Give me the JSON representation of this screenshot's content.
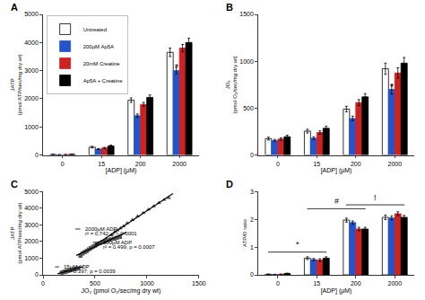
{
  "chart_data": [
    {
      "type": "bar",
      "title": "A",
      "xlabel": "[ADP] (μM)",
      "ylabel": "JATP\n(pmol ATP/sec/mg dry wt)",
      "categories": [
        "0",
        "15",
        "200",
        "2000"
      ],
      "ylim": [
        0,
        5000
      ],
      "yticks": [
        0,
        1000,
        2000,
        3000,
        4000,
        5000
      ],
      "grid": false,
      "legend": "upper left",
      "series": [
        {
          "name": "Untreated",
          "color": "white",
          "values": [
            20,
            280,
            1950,
            3650
          ],
          "errors": [
            10,
            30,
            80,
            150
          ]
        },
        {
          "name": "200μM Ap5A",
          "color": "#2255cc",
          "values": [
            10,
            210,
            1400,
            3000
          ],
          "errors": [
            5,
            20,
            60,
            120
          ]
        },
        {
          "name": "20mM Creatine",
          "color": "#cc2222",
          "values": [
            15,
            250,
            1800,
            3800
          ],
          "errors": [
            8,
            25,
            70,
            130
          ]
        },
        {
          "name": "Ap5A + Creatine",
          "color": "black",
          "values": [
            25,
            320,
            2050,
            4000
          ],
          "errors": [
            12,
            35,
            85,
            150
          ]
        }
      ],
      "annotations": [
        {
          "text": "*",
          "category": "2000",
          "series": "200μM Ap5A",
          "y": 2850
        }
      ]
    },
    {
      "type": "bar",
      "title": "B",
      "xlabel": "[ADP] (μM)",
      "ylabel": "JO₂\n(pmol O₂/sec/mg dry wt)",
      "categories": [
        "0",
        "15",
        "200",
        "2000"
      ],
      "ylim": [
        0,
        1500
      ],
      "yticks": [
        0,
        500,
        1000,
        1500
      ],
      "grid": false,
      "series": [
        {
          "name": "Untreated",
          "color": "white",
          "values": [
            175,
            255,
            490,
            920
          ],
          "errors": [
            15,
            20,
            30,
            60
          ]
        },
        {
          "name": "200μM Ap5A",
          "color": "#2255cc",
          "values": [
            155,
            180,
            390,
            700
          ],
          "errors": [
            12,
            15,
            25,
            50
          ]
        },
        {
          "name": "20mM Creatine",
          "color": "#cc2222",
          "values": [
            170,
            240,
            560,
            875
          ],
          "errors": [
            14,
            18,
            32,
            55
          ]
        },
        {
          "name": "Ap5A + Creatine",
          "color": "black",
          "values": [
            195,
            285,
            620,
            980
          ],
          "errors": [
            16,
            22,
            35,
            60
          ]
        }
      ],
      "annotations": [
        {
          "text": "*",
          "category": "2000",
          "series": "200μM Ap5A",
          "y": 650
        }
      ]
    },
    {
      "type": "scatter",
      "title": "C",
      "xlabel": "JO₂ (pmol O₂/sec/mg dry wt)",
      "ylabel": "JATP\n(pmol ATP/sec/mg dry wt)",
      "xlim": [
        0,
        1500
      ],
      "ylim": [
        0,
        5000
      ],
      "xticks": [
        0,
        500,
        1000,
        1500
      ],
      "yticks": [
        0,
        1000,
        2000,
        3000,
        4000,
        5000
      ],
      "grid": false,
      "series": [
        {
          "type": "scatter",
          "marker": "square",
          "color": "#555555",
          "x": [
            180,
            195,
            205,
            215,
            225,
            235,
            250,
            265,
            280,
            300,
            320,
            340
          ],
          "values": [
            130,
            155,
            175,
            195,
            210,
            235,
            260,
            280,
            310,
            340,
            370,
            410
          ]
        },
        {
          "type": "line",
          "color": "black",
          "x": [
            140,
            390
          ],
          "values": [
            63.74,
            497.04
          ]
        },
        {
          "type": "scatter",
          "marker": "square",
          "color": "#555555",
          "x": [
            360,
            380,
            400,
            420,
            440,
            460,
            480,
            500,
            520,
            545,
            570,
            595,
            620,
            650,
            685,
            710,
            740
          ],
          "values": [
            1150,
            1280,
            1360,
            1430,
            1520,
            1600,
            1680,
            1750,
            1830,
            1900,
            1960,
            2010,
            2060,
            2130,
            2170,
            2220,
            2280
          ]
        },
        {
          "type": "line",
          "color": "black",
          "x": [
            320,
            800
          ],
          "values": [
            1166.37,
            2553.11
          ]
        },
        {
          "type": "scatter",
          "marker": "triangle",
          "color": "#555555",
          "x": [
            560,
            610,
            655,
            690,
            715,
            745,
            775,
            810,
            860,
            910,
            965,
            1015,
            1065,
            1115,
            1165,
            1210
          ],
          "values": [
            1980,
            2180,
            2380,
            2580,
            2680,
            2800,
            2920,
            3100,
            3300,
            3520,
            3720,
            3920,
            4120,
            4320,
            4500,
            4620
          ]
        },
        {
          "type": "line",
          "color": "black",
          "x": [
            500,
            1250
          ],
          "values": [
            1778.25,
            4871.34
          ]
        }
      ],
      "annotations": [
        {
          "text": "2000μM ADP",
          "x": 390,
          "y": 2750
        },
        {
          "text": "r² = 0.742; p < 0.0001",
          "x": 390,
          "y": 2480
        },
        {
          "text": "200μM ADP",
          "x": 560,
          "y": 1950
        },
        {
          "text": "r² = 0.499; p = 0.0007",
          "x": 560,
          "y": 1690
        },
        {
          "text": "15μM ADP",
          "x": 185,
          "y": 480
        },
        {
          "text": "r² = 0.397; p = 0.0039",
          "x": 185,
          "y": 230
        }
      ],
      "leader_lines": [
        {
          "x": [
            310,
            360
          ],
          "y": [
            2750,
            2750
          ]
        },
        {
          "x": [
            480,
            530
          ],
          "y": [
            1950,
            1950
          ]
        },
        {
          "x": [
            115,
            155
          ],
          "y": [
            480,
            480
          ]
        }
      ]
    },
    {
      "type": "bar",
      "title": "D",
      "xlabel": "[ADP] (μM)",
      "ylabel": "ATP/O ratio",
      "categories": [
        "0",
        "15",
        "200",
        "2000"
      ],
      "ylim": [
        0,
        3
      ],
      "yticks": [
        0,
        1,
        2,
        3
      ],
      "grid": false,
      "series": [
        {
          "name": "Untreated",
          "color": "white",
          "values": [
            0.02,
            0.6,
            1.97,
            2.07
          ],
          "errors": [
            0.01,
            0.05,
            0.07,
            0.08
          ]
        },
        {
          "name": "200μM Ap5A",
          "color": "#2255cc",
          "values": [
            0.01,
            0.55,
            1.88,
            2.05
          ],
          "errors": [
            0.01,
            0.04,
            0.06,
            0.07
          ]
        },
        {
          "name": "20mM Creatine",
          "color": "#cc2222",
          "values": [
            0.02,
            0.53,
            1.65,
            2.2
          ],
          "errors": [
            0.01,
            0.05,
            0.06,
            0.07
          ]
        },
        {
          "name": "Ap5A + Creatine",
          "color": "black",
          "values": [
            0.05,
            0.6,
            1.65,
            2.07
          ],
          "errors": [
            0.01,
            0.05,
            0.06,
            0.07
          ]
        }
      ],
      "brackets": [
        {
          "from": "0",
          "to": "15",
          "y": 0.82,
          "text": "*",
          "text_y": 0.87
        },
        {
          "from": "15",
          "to": "200",
          "y": 2.38,
          "text": "#",
          "text_y": 2.43
        },
        {
          "from": "200",
          "to": "2000",
          "y": 2.52,
          "text": "!",
          "text_y": 2.57
        }
      ]
    }
  ]
}
